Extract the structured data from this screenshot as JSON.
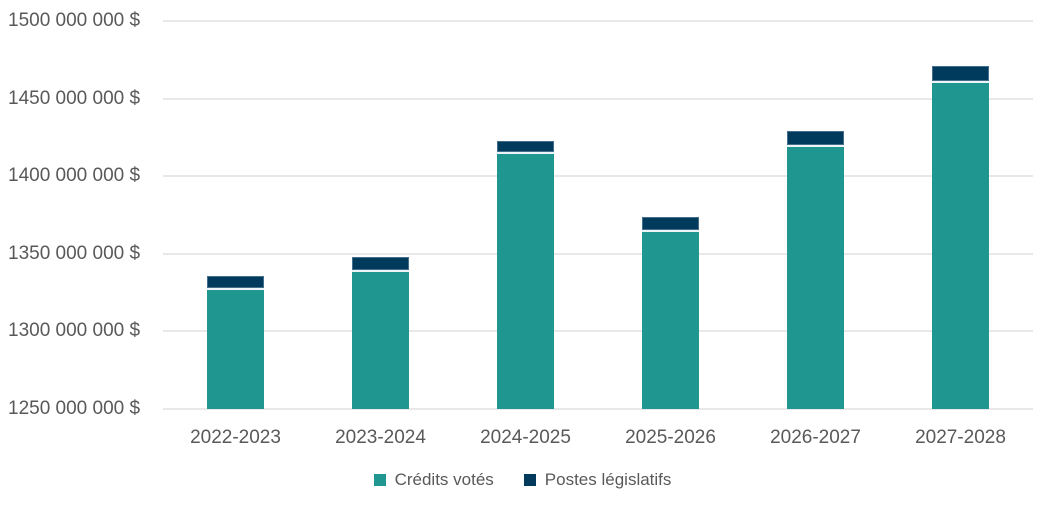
{
  "colors": {
    "background": "#FFFFFF",
    "grid": "#E8E8E8",
    "axis_text": "#595959",
    "segment_separator": "#EDF4F8",
    "navy_outline": "rgba(150,175,200,0.45)"
  },
  "chart_data": {
    "type": "bar",
    "stacked": true,
    "title": "",
    "xlabel": "",
    "ylabel": "",
    "grid": "horizontal",
    "legend_position": "bottom",
    "categories": [
      "2022-2023",
      "2023-2024",
      "2024-2025",
      "2025-2026",
      "2026-2027",
      "2027-2028"
    ],
    "series": [
      {
        "name": "Crédits votés",
        "color": "#1F968F",
        "values": [
          1327000000,
          1338000000,
          1414000000,
          1364000000,
          1419000000,
          1460000000
        ]
      },
      {
        "name": "Postes législatifs",
        "color": "#003A5C",
        "values": [
          9000000,
          10000000,
          9000000,
          10000000,
          10000000,
          11000000
        ]
      }
    ],
    "ylim": [
      1250000000,
      1500000000
    ],
    "yticks": [
      {
        "value": 1500000000,
        "label": "1500 000 000 $"
      },
      {
        "value": 1450000000,
        "label": "1450 000 000 $"
      },
      {
        "value": 1400000000,
        "label": "1400 000 000 $"
      },
      {
        "value": 1350000000,
        "label": "1350 000 000 $"
      },
      {
        "value": 1300000000,
        "label": "1300 000 000 $"
      },
      {
        "value": 1250000000,
        "label": "1250 000 000 $"
      }
    ]
  }
}
